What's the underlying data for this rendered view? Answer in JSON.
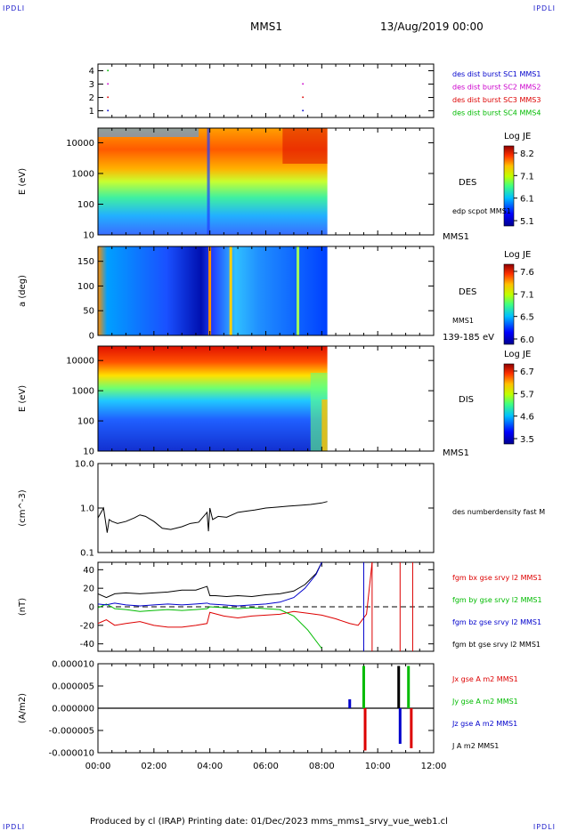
{
  "header": {
    "corner_mark": "IPDLI",
    "title": "MMS1",
    "date": "13/Aug/2019 00:00"
  },
  "footer": {
    "text": "Produced by cl (IRAP)   Printing date: 01/Dec/2023   mms_mms1_srvy_vue_web1.cl"
  },
  "colors": {
    "blue": "#0000cc",
    "magenta": "#cc00cc",
    "red": "#dd0000",
    "green": "#00bb00",
    "black": "#000000"
  },
  "chart_data": [
    {
      "type": "scatter",
      "id": "burst",
      "yticks": [
        "4",
        "3",
        "2",
        "1"
      ],
      "ylim": [
        0.5,
        4.5
      ],
      "legend": [
        {
          "text": "des dist burst SC1 MMS1",
          "color": "#0000cc"
        },
        {
          "text": "des dist burst SC2 MMS2",
          "color": "#cc00cc"
        },
        {
          "text": "des dist burst SC3 MMS3",
          "color": "#dd0000"
        },
        {
          "text": "des dist burst SC4 MMS4",
          "color": "#00bb00"
        }
      ],
      "x_hours": [
        0.33,
        7.3
      ],
      "series": [
        {
          "level": 4,
          "color": "#00bb00",
          "x": [
            0.33
          ]
        },
        {
          "level": 3,
          "color": "#cc00cc",
          "x": [
            0.33,
            7.3
          ]
        },
        {
          "level": 2,
          "color": "#dd0000",
          "x": [
            0.33,
            7.3
          ]
        },
        {
          "level": 1,
          "color": "#0000cc",
          "x": [
            0.33,
            7.3
          ]
        }
      ]
    },
    {
      "type": "heatmap",
      "id": "des_energy",
      "ylabel": "E (eV)",
      "yscale": "log",
      "ylim": [
        10,
        30000
      ],
      "yticks": [
        "10000",
        "1000",
        "100",
        "10"
      ],
      "label": "DES",
      "sublabel": "edp scpot MMS1",
      "bottom_label": "MMS1",
      "colorbar": {
        "title": "Log JE",
        "ticks": [
          "8.2",
          "7.1",
          "6.1",
          "5.1"
        ]
      },
      "data_end_hours": 8.2
    },
    {
      "type": "heatmap",
      "id": "des_pitch",
      "ylabel": "a (deg)",
      "ylim": [
        0,
        180
      ],
      "yticks": [
        "150",
        "100",
        "50",
        "0"
      ],
      "label": "DES",
      "sublabel": "MMS1",
      "bottom_label": "139-185 eV",
      "colorbar": {
        "title": "Log JE",
        "ticks": [
          "7.6",
          "7.1",
          "6.5",
          "6.0"
        ]
      },
      "data_end_hours": 8.2
    },
    {
      "type": "heatmap",
      "id": "dis_energy",
      "ylabel": "E (eV)",
      "yscale": "log",
      "ylim": [
        10,
        30000
      ],
      "yticks": [
        "10000",
        "1000",
        "100",
        "10"
      ],
      "label": "DIS",
      "bottom_label": "MMS1",
      "colorbar": {
        "title": "Log JE",
        "ticks": [
          "6.7",
          "5.7",
          "4.6",
          "3.5"
        ]
      },
      "data_end_hours": 8.2
    },
    {
      "type": "line",
      "id": "density",
      "ylabel": "(cm^-3)",
      "yscale": "log",
      "ylim": [
        0.1,
        10
      ],
      "yticks": [
        "10.0",
        "1.0",
        "0.1"
      ],
      "legend": [
        {
          "text": "des numberdensity fast M",
          "color": "#000000"
        }
      ],
      "x": [
        0.0,
        0.2,
        0.33,
        0.4,
        0.5,
        0.7,
        1.0,
        1.3,
        1.5,
        1.7,
        2.0,
        2.3,
        2.6,
        3.0,
        3.3,
        3.6,
        3.9,
        3.95,
        4.0,
        4.1,
        4.3,
        4.6,
        5.0,
        5.3,
        5.6,
        6.0,
        6.4,
        6.8,
        7.2,
        7.6,
        8.0,
        8.2
      ],
      "y": [
        0.6,
        1.0,
        0.28,
        0.55,
        0.5,
        0.45,
        0.5,
        0.6,
        0.7,
        0.65,
        0.5,
        0.35,
        0.33,
        0.38,
        0.45,
        0.48,
        0.8,
        0.3,
        1.0,
        0.55,
        0.65,
        0.62,
        0.8,
        0.85,
        0.9,
        1.0,
        1.05,
        1.1,
        1.15,
        1.2,
        1.3,
        1.4
      ]
    },
    {
      "type": "line",
      "id": "fgm",
      "ylabel": "(nT)",
      "ylim": [
        -48,
        48
      ],
      "yticks": [
        "40",
        "20",
        "0",
        "-20",
        "-40"
      ],
      "legend": [
        {
          "text": "fgm bx gse srvy l2 MMS1",
          "color": "#dd0000"
        },
        {
          "text": "fgm by gse srvy l2 MMS1",
          "color": "#00bb00"
        },
        {
          "text": "fgm bz gse srvy l2 MMS1",
          "color": "#0000cc"
        },
        {
          "text": "fgm bt gse srvy l2 MMS1",
          "color": "#000000"
        }
      ],
      "zero_line": true,
      "series": [
        {
          "name": "fgm bt gse srvy l2 MMS1",
          "color": "#000000",
          "x": [
            0.0,
            0.3,
            0.6,
            1.0,
            1.5,
            2.0,
            2.5,
            3.0,
            3.5,
            3.9,
            4.0,
            4.2,
            4.6,
            5.0,
            5.5,
            6.0,
            6.5,
            7.0,
            7.4,
            7.8,
            8.0
          ],
          "y": [
            14,
            10,
            14,
            15,
            14,
            15,
            16,
            18,
            18,
            22,
            12,
            12,
            11,
            12,
            11,
            13,
            14,
            17,
            24,
            36,
            48
          ]
        },
        {
          "name": "fgm bx gse srvy l2 MMS1",
          "color": "#dd0000",
          "x": [
            0.0,
            0.3,
            0.6,
            1.0,
            1.5,
            2.0,
            2.5,
            3.0,
            3.5,
            3.9,
            4.0,
            4.5,
            5.0,
            5.5,
            6.0,
            6.5,
            7.0,
            7.5,
            8.0,
            8.5,
            9.0,
            9.3,
            9.6,
            9.8
          ],
          "y": [
            -18,
            -14,
            -20,
            -18,
            -16,
            -20,
            -22,
            -22,
            -20,
            -18,
            -6,
            -10,
            -12,
            -10,
            -9,
            -8,
            -5,
            -7,
            -9,
            -13,
            -18,
            -20,
            -8,
            48
          ]
        },
        {
          "name": "fgm by gse srvy l2 MMS1",
          "color": "#00bb00",
          "x": [
            0.0,
            0.3,
            0.6,
            1.0,
            1.5,
            2.0,
            2.5,
            3.0,
            3.5,
            3.9,
            4.0,
            4.5,
            5.0,
            5.5,
            6.0,
            6.5,
            7.0,
            7.5,
            8.0
          ],
          "y": [
            -1,
            3,
            -2,
            -3,
            -5,
            -4,
            -3,
            -4,
            -3,
            -2,
            0,
            -1,
            -2,
            -1,
            -2,
            -3,
            -10,
            -25,
            -45
          ]
        },
        {
          "name": "fgm bz gse srvy l2 MMS1",
          "color": "#0000cc",
          "x": [
            0.0,
            0.3,
            0.6,
            1.0,
            1.5,
            2.0,
            2.5,
            3.0,
            3.5,
            3.9,
            4.0,
            4.5,
            5.0,
            5.5,
            6.0,
            6.5,
            7.0,
            7.4,
            7.8,
            8.0
          ],
          "y": [
            3,
            2,
            4,
            2,
            1,
            2,
            3,
            2,
            3,
            4,
            3,
            2,
            1,
            2,
            3,
            5,
            10,
            20,
            35,
            48
          ]
        }
      ]
    },
    {
      "type": "line",
      "id": "current",
      "ylabel": "(A/m2)",
      "ylim": [
        -1e-05,
        1e-05
      ],
      "yticks": [
        "0.000010",
        "0.000005",
        "0.000000",
        "-0.000005",
        "-0.000010"
      ],
      "legend": [
        {
          "text": "Jx gse A m2 MMS1",
          "color": "#dd0000"
        },
        {
          "text": "Jy gse A m2 MMS1",
          "color": "#00bb00"
        },
        {
          "text": "Jz gse A m2 MMS1",
          "color": "#0000cc"
        },
        {
          "text": "J A m2 MMS1",
          "color": "#000000"
        }
      ],
      "xlim": [
        0,
        12
      ],
      "xticks": [
        "00:00",
        "02:00",
        "04:00",
        "06:00",
        "08:00",
        "10:00",
        "12:00"
      ],
      "spikes": [
        {
          "x": 9.0,
          "y": 2e-06
        },
        {
          "x": 9.5,
          "y": 9.5e-06
        },
        {
          "x": 9.55,
          "y": -9.5e-06
        },
        {
          "x": 10.75,
          "y": 9.5e-06
        },
        {
          "x": 10.8,
          "y": -8e-06
        },
        {
          "x": 11.1,
          "y": 9.5e-06
        },
        {
          "x": 11.2,
          "y": -9e-06
        }
      ]
    }
  ]
}
